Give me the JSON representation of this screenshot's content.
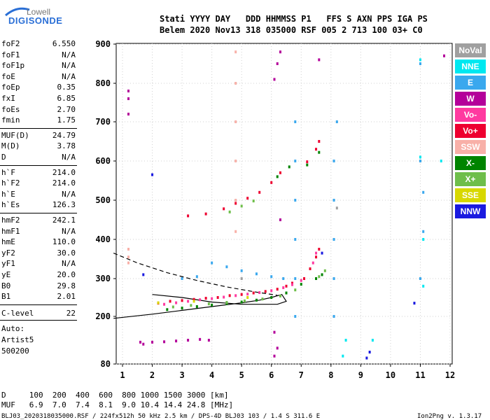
{
  "logo": {
    "line1": "Lowell",
    "line2": "DIGISONDE"
  },
  "header": {
    "line1": "Stati YYYY DAY   DDD HHMMSS P1   FFS S AXN PPS IGA PS",
    "line2": "Belem 2020 Nov13 318 035000 RSF 005 2 713 100 03+ C0"
  },
  "params1": [
    {
      "name": "foF2",
      "value": "6.550"
    },
    {
      "name": "foF1",
      "value": "N/A"
    },
    {
      "name": "foF1p",
      "value": "N/A"
    },
    {
      "name": "foE",
      "value": "N/A"
    },
    {
      "name": "foEp",
      "value": "0.35"
    },
    {
      "name": "fxI",
      "value": "6.85"
    },
    {
      "name": "foEs",
      "value": "2.70"
    },
    {
      "name": "fmin",
      "value": "1.75"
    }
  ],
  "params2": [
    {
      "name": "MUF(D)",
      "value": "24.79"
    },
    {
      "name": "M(D)",
      "value": "3.78"
    },
    {
      "name": "D",
      "value": "N/A"
    }
  ],
  "params3": [
    {
      "name": "h`F",
      "value": "214.0"
    },
    {
      "name": "h`F2",
      "value": "214.0"
    },
    {
      "name": "h`E",
      "value": "N/A"
    },
    {
      "name": "h`Es",
      "value": "126.3"
    }
  ],
  "params4": [
    {
      "name": "hmF2",
      "value": "242.1"
    },
    {
      "name": "hmF1",
      "value": "N/A"
    },
    {
      "name": "hmE",
      "value": "110.0"
    },
    {
      "name": "yF2",
      "value": "30.0"
    },
    {
      "name": "yF1",
      "value": "N/A"
    },
    {
      "name": "yE",
      "value": "20.0"
    },
    {
      "name": "B0",
      "value": "29.8"
    },
    {
      "name": "B1",
      "value": "2.01"
    }
  ],
  "clevel": {
    "name": "C-level",
    "value": "22"
  },
  "auto": {
    "line1": "Auto:",
    "line2": "Artist5",
    "line3": "500200"
  },
  "legend": [
    {
      "label": "NoVal",
      "color": "#a0a0a0"
    },
    {
      "label": "NNE",
      "color": "#00e8f0"
    },
    {
      "label": "E",
      "color": "#3aa8ee"
    },
    {
      "label": "W",
      "color": "#b4009a"
    },
    {
      "label": "Vo-",
      "color": "#ff3aa0"
    },
    {
      "label": "Vo+",
      "color": "#ee0030"
    },
    {
      "label": "SSW",
      "color": "#f8b0a8"
    },
    {
      "label": "X-",
      "color": "#008400"
    },
    {
      "label": "X+",
      "color": "#6ebe4a"
    },
    {
      "label": "SSE",
      "color": "#d8d800"
    },
    {
      "label": "NNW",
      "color": "#1a1ae0"
    }
  ],
  "bottom": {
    "line1": "D     100  200  400  600  800 1000 1500 3000 [km]",
    "line2": "MUF   6.9  7.0  7.4  8.1  9.0 10.4 14.4 24.8 [MHz]"
  },
  "footer": "BLJ03_2020318035000.RSF / 224fx512h 50 kHz 2.5 km / DPS-4D BLJ03 103 / 1.4 S 311.6 E",
  "version": "Ion2Png v. 1.3.17",
  "chart_data": {
    "type": "scatter",
    "title": "",
    "xlabel": "",
    "ylabel": "",
    "xlim": [
      0.7,
      12.0
    ],
    "ylim": [
      80,
      900
    ],
    "xticks": [
      "1",
      "2",
      "3",
      "4",
      "5",
      "6",
      "7",
      "8",
      "9",
      "10",
      "11",
      "12"
    ],
    "yticks": [
      "80",
      "200",
      "300",
      "400",
      "500",
      "600",
      "700",
      "800",
      "900"
    ],
    "grid": true,
    "legend_position": "right",
    "series": [
      {
        "color_key": "Vo+",
        "points": [
          [
            2.2,
            235
          ],
          [
            2.6,
            240
          ],
          [
            3.0,
            242
          ],
          [
            3.4,
            245
          ],
          [
            3.8,
            248
          ],
          [
            4.2,
            250
          ],
          [
            4.6,
            255
          ],
          [
            5.0,
            258
          ],
          [
            5.4,
            262
          ],
          [
            5.8,
            266
          ],
          [
            6.2,
            272
          ],
          [
            6.5,
            280
          ],
          [
            6.7,
            288
          ],
          [
            7.1,
            300
          ],
          [
            7.3,
            325
          ],
          [
            7.5,
            355
          ],
          [
            7.6,
            375
          ],
          [
            4.4,
            478
          ],
          [
            4.8,
            492
          ],
          [
            5.2,
            505
          ],
          [
            5.6,
            520
          ],
          [
            6.0,
            545
          ],
          [
            6.3,
            570
          ],
          [
            7.2,
            598
          ],
          [
            7.5,
            630
          ],
          [
            7.6,
            650
          ],
          [
            3.2,
            460
          ],
          [
            3.8,
            465
          ]
        ]
      },
      {
        "color_key": "Vo-",
        "points": [
          [
            2.4,
            232
          ],
          [
            2.8,
            236
          ],
          [
            3.2,
            240
          ],
          [
            3.6,
            244
          ],
          [
            4.0,
            247
          ],
          [
            4.4,
            251
          ],
          [
            4.8,
            255
          ],
          [
            5.2,
            259
          ],
          [
            5.6,
            263
          ],
          [
            6.0,
            268
          ],
          [
            6.4,
            276
          ],
          [
            6.7,
            284
          ],
          [
            7.0,
            295
          ],
          [
            7.4,
            340
          ],
          [
            7.5,
            365
          ]
        ]
      },
      {
        "color_key": "X-",
        "points": [
          [
            2.5,
            218
          ],
          [
            3.0,
            222
          ],
          [
            3.5,
            226
          ],
          [
            4.0,
            230
          ],
          [
            4.5,
            234
          ],
          [
            5.0,
            238
          ],
          [
            5.5,
            243
          ],
          [
            6.0,
            250
          ],
          [
            6.5,
            262
          ],
          [
            7.0,
            285
          ],
          [
            7.5,
            300
          ],
          [
            7.7,
            310
          ],
          [
            6.2,
            560
          ],
          [
            6.6,
            585
          ],
          [
            7.2,
            590
          ],
          [
            7.6,
            622
          ]
        ]
      },
      {
        "color_key": "X+",
        "points": [
          [
            2.7,
            225
          ],
          [
            3.3,
            229
          ],
          [
            3.9,
            233
          ],
          [
            4.5,
            237
          ],
          [
            5.1,
            241
          ],
          [
            5.7,
            246
          ],
          [
            6.3,
            254
          ],
          [
            6.8,
            270
          ],
          [
            7.6,
            305
          ],
          [
            7.8,
            320
          ],
          [
            4.6,
            470
          ],
          [
            5.0,
            485
          ],
          [
            5.4,
            498
          ]
        ]
      },
      {
        "color_key": "W",
        "points": [
          [
            1.2,
            780
          ],
          [
            1.2,
            760
          ],
          [
            1.2,
            720
          ],
          [
            6.1,
            810
          ],
          [
            6.2,
            850
          ],
          [
            6.3,
            880
          ],
          [
            6.1,
            160
          ],
          [
            6.2,
            120
          ],
          [
            6.1,
            100
          ],
          [
            6.3,
            450
          ],
          [
            7.6,
            860
          ],
          [
            11.8,
            870
          ],
          [
            1.6,
            135
          ],
          [
            2.0,
            135
          ],
          [
            2.4,
            136
          ],
          [
            2.8,
            138
          ],
          [
            3.2,
            140
          ],
          [
            3.6,
            142
          ],
          [
            3.9,
            140
          ],
          [
            1.7,
            130
          ]
        ]
      },
      {
        "color_key": "E",
        "points": [
          [
            6.8,
            200
          ],
          [
            6.8,
            300
          ],
          [
            6.8,
            400
          ],
          [
            6.8,
            500
          ],
          [
            6.8,
            600
          ],
          [
            6.8,
            700
          ],
          [
            8.1,
            200
          ],
          [
            8.1,
            300
          ],
          [
            8.1,
            400
          ],
          [
            8.1,
            500
          ],
          [
            8.1,
            600
          ],
          [
            8.2,
            700
          ],
          [
            11.0,
            850
          ],
          [
            11.0,
            600
          ],
          [
            11.1,
            520
          ],
          [
            11.1,
            420
          ],
          [
            11.0,
            300
          ],
          [
            4.0,
            340
          ],
          [
            4.5,
            330
          ],
          [
            5.0,
            320
          ],
          [
            5.5,
            312
          ],
          [
            6.0,
            305
          ],
          [
            6.4,
            300
          ],
          [
            3.0,
            300
          ],
          [
            3.5,
            305
          ]
        ]
      },
      {
        "color_key": "NNE",
        "points": [
          [
            11.0,
            860
          ],
          [
            11.0,
            610
          ],
          [
            11.1,
            400
          ],
          [
            11.1,
            280
          ],
          [
            8.5,
            140
          ],
          [
            8.4,
            100
          ],
          [
            9.4,
            140
          ],
          [
            11.7,
            600
          ]
        ]
      },
      {
        "color_key": "SSW",
        "points": [
          [
            4.8,
            880
          ],
          [
            4.8,
            800
          ],
          [
            4.8,
            700
          ],
          [
            4.8,
            600
          ],
          [
            4.8,
            500
          ],
          [
            4.8,
            420
          ],
          [
            1.2,
            375
          ],
          [
            1.2,
            355
          ],
          [
            1.2,
            340
          ]
        ]
      },
      {
        "color_key": "SSE",
        "points": [
          [
            2.2,
            236
          ],
          [
            3.4,
            240
          ],
          [
            5.2,
            250
          ]
        ]
      },
      {
        "color_key": "NNW",
        "points": [
          [
            9.3,
            110
          ],
          [
            9.2,
            95
          ],
          [
            10.8,
            235
          ],
          [
            2.0,
            565
          ],
          [
            1.7,
            310
          ],
          [
            7.7,
            365
          ]
        ]
      },
      {
        "color_key": "NoVal",
        "points": [
          [
            8.2,
            480
          ],
          [
            5.0,
            300
          ]
        ]
      }
    ],
    "curves": [
      {
        "style": "solid",
        "points": [
          [
            0.7,
            195
          ],
          [
            2.0,
            206
          ],
          [
            3.0,
            216
          ],
          [
            4.0,
            226
          ],
          [
            5.0,
            236
          ],
          [
            5.6,
            243
          ],
          [
            6.0,
            250
          ],
          [
            6.35,
            258
          ],
          [
            6.5,
            240
          ],
          [
            6.2,
            232
          ],
          [
            5.0,
            232
          ],
          [
            4.0,
            238
          ],
          [
            3.0,
            250
          ],
          [
            2.0,
            258
          ]
        ]
      },
      {
        "style": "dashed",
        "points": [
          [
            0.7,
            365
          ],
          [
            1.5,
            340
          ],
          [
            2.5,
            315
          ],
          [
            3.5,
            295
          ],
          [
            4.5,
            278
          ],
          [
            5.5,
            264
          ],
          [
            6.2,
            256
          ]
        ]
      }
    ]
  }
}
